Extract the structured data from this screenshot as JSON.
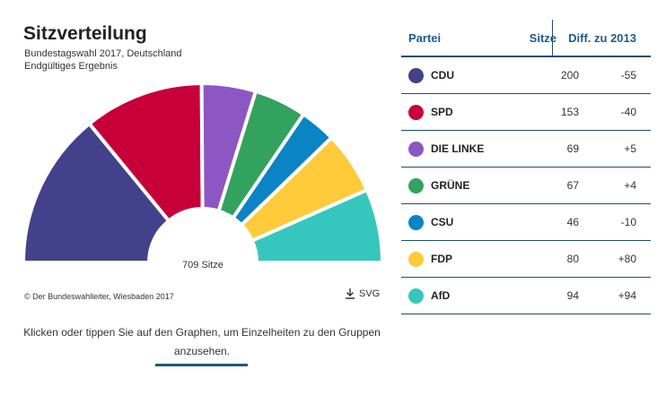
{
  "header": {
    "title": "Sitzverteilung",
    "subtitle_line1": "Bundestagswahl 2017, Deutschland",
    "subtitle_line2": "Endgültiges Ergebnis"
  },
  "footer": {
    "copyright": "© Der Bundeswahlleiter, Wiesbaden 2017",
    "download_label": "SVG",
    "download_icon": "download-icon",
    "hint": "Klicken oder tippen Sie auf den Graphen, um Einzelheiten zu den Gruppen anzusehen."
  },
  "table": {
    "headers": {
      "party": "Partei",
      "seats": "Sitze",
      "diff": "Diff. zu 2013"
    }
  },
  "chart_data": {
    "type": "pie",
    "subtype": "semicircle-donut",
    "title": "Sitzverteilung",
    "total_label": "709 Sitze",
    "total": 709,
    "categories": [
      "CDU",
      "SPD",
      "DIE LINKE",
      "GRÜNE",
      "CSU",
      "FDP",
      "AfD"
    ],
    "values": [
      200,
      153,
      69,
      67,
      46,
      80,
      94
    ],
    "diff_2013": [
      "-55",
      "-40",
      "+5",
      "+4",
      "-10",
      "+80",
      "+94"
    ],
    "colors": [
      "#43418a",
      "#c8003a",
      "#8c57c2",
      "#34a25f",
      "#0a84c4",
      "#fdcb3a",
      "#35c7bd"
    ],
    "legend": "right-table"
  }
}
